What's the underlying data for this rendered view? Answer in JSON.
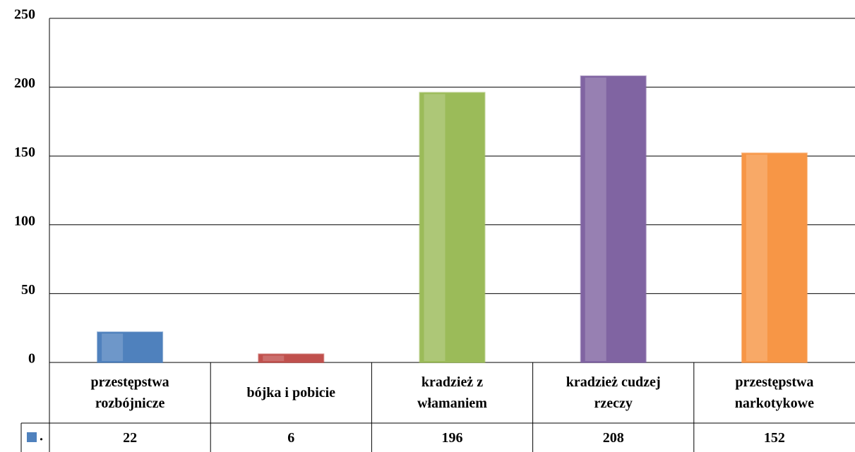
{
  "chart_data": {
    "type": "bar",
    "categories": [
      "przestępstwa rozbójnicze",
      "bójka i pobicie",
      "kradzież z włamaniem",
      "kradzież cudzej rzeczy",
      "przestępstwa narkotykowe"
    ],
    "series": [
      {
        "name": ".",
        "color": "#4f81bd",
        "values": [
          22,
          6,
          196,
          208,
          152
        ],
        "colors": [
          "#4f81bd",
          "#c0504d",
          "#9bbb59",
          "#8064a2",
          "#f79646"
        ]
      }
    ],
    "ylim": [
      0,
      250
    ],
    "yticks": [
      0,
      50,
      100,
      150,
      200,
      250
    ],
    "grid": true,
    "data_table": true
  }
}
